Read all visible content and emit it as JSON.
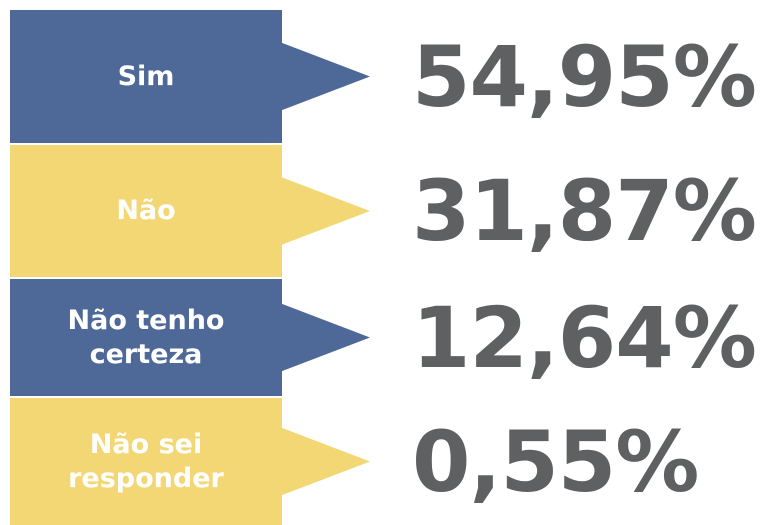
{
  "items": [
    {
      "label": "Sim",
      "value": "54,95%"
    },
    {
      "label": "Não",
      "value": "31,87%"
    },
    {
      "label": "Não tenho certeza",
      "value": "12,64%"
    },
    {
      "label": "Não sei responder",
      "value": "0,55%"
    }
  ]
}
